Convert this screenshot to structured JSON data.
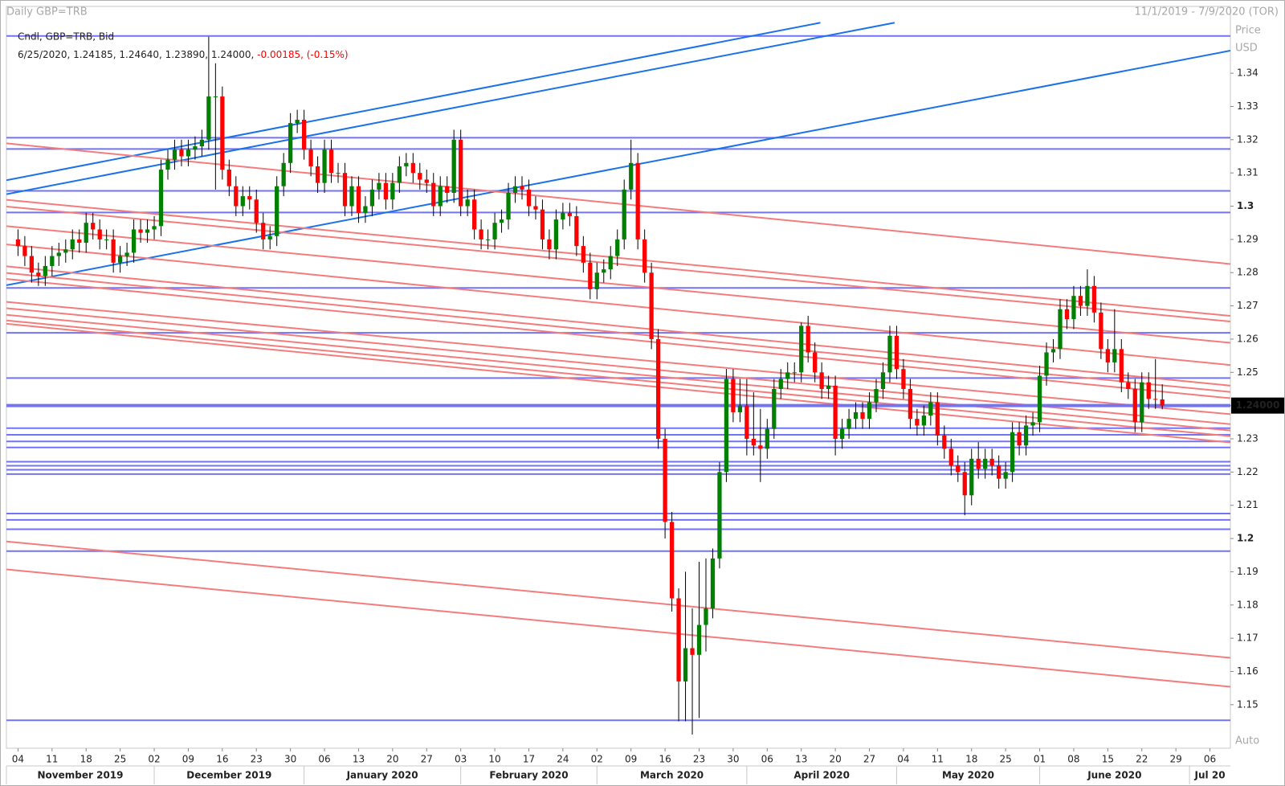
{
  "chart_data": {
    "type": "candlestick",
    "title": "Daily GBP=TRB",
    "range_text": "11/1/2019 - 7/9/2020 (TOR)",
    "legend": {
      "line1": "Cndl, GBP=TRB, Bid",
      "ohlc": "6/25/2020, 1.24185, 1.24640, 1.23890, 1.24000, ",
      "change": "-0.00185, (-0.15%)"
    },
    "axis_title": "Price",
    "axis_unit": "USD",
    "scale_mode": "Auto",
    "up_color": "#008000",
    "down_color": "#ff0000",
    "open": [
      1.29,
      1.288,
      1.285,
      1.28,
      1.279,
      1.282,
      1.285,
      1.286,
      1.287,
      1.29,
      1.289,
      1.295,
      1.293,
      1.29,
      1.29,
      1.283,
      1.285,
      1.286,
      1.293,
      1.292,
      1.293,
      1.294,
      1.311,
      1.314,
      1.317,
      1.315,
      1.317,
      1.318,
      1.32,
      1.333,
      1.333,
      1.311,
      1.306,
      1.3,
      1.303,
      1.302,
      1.295,
      1.29,
      1.291,
      1.306,
      1.313,
      1.325,
      1.326,
      1.317,
      1.312,
      1.307,
      1.317,
      1.31,
      1.31,
      1.3,
      1.306,
      1.298,
      1.3,
      1.305,
      1.307,
      1.302,
      1.307,
      1.312,
      1.313,
      1.31,
      1.308,
      1.307,
      1.3,
      1.306,
      1.304,
      1.32,
      1.3,
      1.302,
      1.293,
      1.29,
      1.29,
      1.295,
      1.296,
      1.304,
      1.306,
      1.305,
      1.3,
      1.299,
      1.29,
      1.287,
      1.296,
      1.298,
      1.297,
      1.288,
      1.283,
      1.275,
      1.28,
      1.281,
      1.285,
      1.29,
      1.305,
      1.313,
      1.29,
      1.28,
      1.26,
      1.23,
      1.205,
      1.182,
      1.157,
      1.167,
      1.165,
      1.174,
      1.179,
      1.194,
      1.22,
      1.248,
      1.238,
      1.24,
      1.23,
      1.228,
      1.227,
      1.233,
      1.245,
      1.248,
      1.25,
      1.25,
      1.264,
      1.256,
      1.25,
      1.245,
      1.246,
      1.23,
      1.233,
      1.236,
      1.238,
      1.236,
      1.241,
      1.245,
      1.25,
      1.261,
      1.251,
      1.245,
      1.236,
      1.234,
      1.237,
      1.241,
      1.231,
      1.227,
      1.222,
      1.22,
      1.213,
      1.224,
      1.221,
      1.224,
      1.222,
      1.218,
      1.22,
      1.232,
      1.228,
      1.234,
      1.235,
      1.249,
      1.256,
      1.257,
      1.269,
      1.266,
      1.273,
      1.27,
      1.276,
      1.268,
      1.257,
      1.253,
      1.257,
      1.247,
      1.245,
      1.235,
      1.247,
      1.242,
      1.24185
    ],
    "high": [
      1.293,
      1.291,
      1.288,
      1.283,
      1.285,
      1.288,
      1.289,
      1.29,
      1.293,
      1.293,
      1.298,
      1.298,
      1.296,
      1.293,
      1.293,
      1.288,
      1.289,
      1.296,
      1.296,
      1.296,
      1.297,
      1.314,
      1.317,
      1.32,
      1.32,
      1.32,
      1.321,
      1.323,
      1.351,
      1.343,
      1.336,
      1.314,
      1.309,
      1.306,
      1.306,
      1.305,
      1.298,
      1.294,
      1.309,
      1.316,
      1.328,
      1.329,
      1.329,
      1.32,
      1.315,
      1.32,
      1.32,
      1.313,
      1.313,
      1.309,
      1.309,
      1.303,
      1.308,
      1.31,
      1.31,
      1.31,
      1.315,
      1.316,
      1.316,
      1.313,
      1.311,
      1.31,
      1.309,
      1.309,
      1.323,
      1.323,
      1.305,
      1.305,
      1.296,
      1.293,
      1.298,
      1.299,
      1.307,
      1.309,
      1.309,
      1.308,
      1.303,
      1.302,
      1.293,
      1.299,
      1.301,
      1.301,
      1.3,
      1.291,
      1.286,
      1.283,
      1.284,
      1.288,
      1.293,
      1.308,
      1.32,
      1.316,
      1.293,
      1.283,
      1.263,
      1.233,
      1.208,
      1.185,
      1.19,
      1.179,
      1.193,
      1.194,
      1.197,
      1.223,
      1.251,
      1.251,
      1.248,
      1.248,
      1.244,
      1.239,
      1.236,
      1.248,
      1.251,
      1.253,
      1.253,
      1.265,
      1.267,
      1.259,
      1.253,
      1.249,
      1.249,
      1.236,
      1.239,
      1.241,
      1.241,
      1.244,
      1.248,
      1.253,
      1.264,
      1.264,
      1.254,
      1.248,
      1.239,
      1.24,
      1.244,
      1.244,
      1.234,
      1.23,
      1.225,
      1.223,
      1.227,
      1.229,
      1.227,
      1.227,
      1.225,
      1.223,
      1.235,
      1.235,
      1.237,
      1.238,
      1.252,
      1.259,
      1.26,
      1.272,
      1.272,
      1.276,
      1.276,
      1.281,
      1.279,
      1.271,
      1.26,
      1.269,
      1.26,
      1.25,
      1.248,
      1.25,
      1.25,
      1.254,
      1.2464
    ],
    "low": [
      1.285,
      1.282,
      1.277,
      1.276,
      1.276,
      1.279,
      1.282,
      1.283,
      1.284,
      1.286,
      1.286,
      1.29,
      1.287,
      1.287,
      1.28,
      1.28,
      1.282,
      1.283,
      1.289,
      1.289,
      1.29,
      1.291,
      1.308,
      1.311,
      1.312,
      1.312,
      1.314,
      1.315,
      1.317,
      1.305,
      1.308,
      1.303,
      1.297,
      1.297,
      1.299,
      1.292,
      1.287,
      1.287,
      1.288,
      1.303,
      1.31,
      1.322,
      1.314,
      1.309,
      1.304,
      1.304,
      1.307,
      1.307,
      1.297,
      1.297,
      1.295,
      1.295,
      1.297,
      1.302,
      1.299,
      1.299,
      1.304,
      1.309,
      1.307,
      1.305,
      1.304,
      1.297,
      1.297,
      1.301,
      1.301,
      1.297,
      1.297,
      1.29,
      1.287,
      1.287,
      1.287,
      1.292,
      1.293,
      1.301,
      1.302,
      1.297,
      1.296,
      1.287,
      1.284,
      1.284,
      1.293,
      1.294,
      1.285,
      1.28,
      1.272,
      1.272,
      1.277,
      1.278,
      1.282,
      1.287,
      1.302,
      1.287,
      1.277,
      1.257,
      1.227,
      1.2,
      1.178,
      1.145,
      1.145,
      1.141,
      1.146,
      1.166,
      1.176,
      1.191,
      1.217,
      1.235,
      1.235,
      1.225,
      1.225,
      1.217,
      1.224,
      1.23,
      1.242,
      1.245,
      1.247,
      1.247,
      1.253,
      1.247,
      1.242,
      1.242,
      1.225,
      1.227,
      1.23,
      1.233,
      1.233,
      1.233,
      1.238,
      1.242,
      1.247,
      1.248,
      1.242,
      1.233,
      1.231,
      1.231,
      1.234,
      1.228,
      1.224,
      1.219,
      1.217,
      1.207,
      1.21,
      1.218,
      1.218,
      1.219,
      1.215,
      1.215,
      1.217,
      1.225,
      1.225,
      1.231,
      1.232,
      1.246,
      1.253,
      1.254,
      1.263,
      1.263,
      1.267,
      1.267,
      1.265,
      1.254,
      1.25,
      1.25,
      1.244,
      1.242,
      1.232,
      1.232,
      1.239,
      1.239,
      1.2389
    ],
    "close": [
      1.288,
      1.285,
      1.28,
      1.279,
      1.282,
      1.285,
      1.286,
      1.287,
      1.29,
      1.289,
      1.295,
      1.293,
      1.29,
      1.29,
      1.283,
      1.285,
      1.286,
      1.293,
      1.292,
      1.293,
      1.294,
      1.311,
      1.314,
      1.317,
      1.315,
      1.317,
      1.318,
      1.32,
      1.333,
      1.333,
      1.311,
      1.306,
      1.3,
      1.303,
      1.302,
      1.295,
      1.29,
      1.291,
      1.306,
      1.313,
      1.325,
      1.326,
      1.317,
      1.312,
      1.307,
      1.317,
      1.31,
      1.31,
      1.3,
      1.306,
      1.298,
      1.3,
      1.305,
      1.307,
      1.302,
      1.307,
      1.312,
      1.313,
      1.31,
      1.308,
      1.307,
      1.3,
      1.306,
      1.304,
      1.32,
      1.3,
      1.302,
      1.293,
      1.29,
      1.29,
      1.295,
      1.296,
      1.304,
      1.306,
      1.305,
      1.3,
      1.299,
      1.29,
      1.287,
      1.296,
      1.298,
      1.297,
      1.288,
      1.283,
      1.275,
      1.28,
      1.281,
      1.285,
      1.29,
      1.305,
      1.313,
      1.29,
      1.28,
      1.26,
      1.23,
      1.205,
      1.182,
      1.157,
      1.167,
      1.165,
      1.174,
      1.179,
      1.194,
      1.22,
      1.248,
      1.238,
      1.24,
      1.23,
      1.228,
      1.227,
      1.233,
      1.245,
      1.248,
      1.25,
      1.25,
      1.264,
      1.256,
      1.25,
      1.245,
      1.246,
      1.23,
      1.233,
      1.236,
      1.238,
      1.236,
      1.241,
      1.245,
      1.25,
      1.261,
      1.251,
      1.245,
      1.236,
      1.234,
      1.237,
      1.241,
      1.231,
      1.227,
      1.222,
      1.22,
      1.213,
      1.224,
      1.221,
      1.224,
      1.222,
      1.218,
      1.22,
      1.232,
      1.228,
      1.234,
      1.235,
      1.249,
      1.256,
      1.257,
      1.269,
      1.266,
      1.273,
      1.27,
      1.276,
      1.268,
      1.257,
      1.253,
      1.257,
      1.247,
      1.245,
      1.235,
      1.247,
      1.242,
      1.24185,
      1.24
    ],
    "xlim": [
      -1.7,
      178
    ],
    "xticks": [
      {
        "value": 0,
        "label": "04"
      },
      {
        "value": 5,
        "label": "11"
      },
      {
        "value": 10,
        "label": "18"
      },
      {
        "value": 15,
        "label": "25"
      },
      {
        "value": 20,
        "label": "02"
      },
      {
        "value": 25,
        "label": "09"
      },
      {
        "value": 30,
        "label": "16"
      },
      {
        "value": 35,
        "label": "23"
      },
      {
        "value": 40,
        "label": "30"
      },
      {
        "value": 45,
        "label": "06"
      },
      {
        "value": 50,
        "label": "13"
      },
      {
        "value": 55,
        "label": "20"
      },
      {
        "value": 60,
        "label": "27"
      },
      {
        "value": 65,
        "label": "03"
      },
      {
        "value": 70,
        "label": "10"
      },
      {
        "value": 75,
        "label": "17"
      },
      {
        "value": 80,
        "label": "24"
      },
      {
        "value": 85,
        "label": "02"
      },
      {
        "value": 90,
        "label": "09"
      },
      {
        "value": 95,
        "label": "16"
      },
      {
        "value": 100,
        "label": "23"
      },
      {
        "value": 105,
        "label": "30"
      },
      {
        "value": 110,
        "label": "06"
      },
      {
        "value": 115,
        "label": "13"
      },
      {
        "value": 120,
        "label": "20"
      },
      {
        "value": 125,
        "label": "27"
      },
      {
        "value": 130,
        "label": "04"
      },
      {
        "value": 135,
        "label": "11"
      },
      {
        "value": 140,
        "label": "18"
      },
      {
        "value": 145,
        "label": "25"
      },
      {
        "value": 150,
        "label": "01"
      },
      {
        "value": 155,
        "label": "08"
      },
      {
        "value": 160,
        "label": "15"
      },
      {
        "value": 165,
        "label": "22"
      },
      {
        "value": 170,
        "label": "29"
      },
      {
        "value": 175,
        "label": "06"
      }
    ],
    "months": [
      {
        "value": -1.7,
        "label": "November 2019"
      },
      {
        "value": 20,
        "label": "December 2019"
      },
      {
        "value": 42,
        "label": "January 2020"
      },
      {
        "value": 65,
        "label": "February 2020"
      },
      {
        "value": 85,
        "label": "March 2020"
      },
      {
        "value": 107,
        "label": "April 2020"
      },
      {
        "value": 129,
        "label": "May 2020"
      },
      {
        "value": 150,
        "label": "June 2020"
      },
      {
        "value": 172,
        "label": "Jul 20"
      }
    ],
    "ylim": [
      1.1369,
      1.3601
    ],
    "yticks": [
      1.34,
      1.33,
      1.32,
      1.31,
      1.3,
      1.29,
      1.28,
      1.27,
      1.26,
      1.25,
      1.24,
      1.23,
      1.22,
      1.21,
      1.2,
      1.19,
      1.18,
      1.17,
      1.16,
      1.15
    ],
    "grid": false,
    "last_price": {
      "value": 1.24,
      "label": "1.24000"
    },
    "hline_color": "#7373f5",
    "hlines": [
      1.3512,
      1.3206,
      1.3172,
      1.3046,
      1.2981,
      1.2754,
      1.2619,
      1.2483,
      1.2332,
      1.2312,
      1.2292,
      1.2274,
      1.2231,
      1.2219,
      1.2207,
      1.2194,
      1.2075,
      1.2056,
      1.2028,
      1.1962,
      1.1453
    ],
    "trendlines": [
      {
        "color": "#1b72e8",
        "x": [
          -1.7,
          117.8
        ],
        "y": [
          1.3078,
          1.3552
        ]
      },
      {
        "color": "#1b72e8",
        "x": [
          -1.7,
          128.7
        ],
        "y": [
          1.3036,
          1.3552
        ]
      },
      {
        "color": "#1b72e8",
        "x": [
          -1.7,
          178
        ],
        "y": [
          1.2762,
          1.3468
        ]
      },
      {
        "color": "#f47c7c",
        "x": [
          -1.7,
          178
        ],
        "y": [
          1.3189,
          1.2826
        ]
      },
      {
        "color": "#f47c7c",
        "x": [
          -1.7,
          178
        ],
        "y": [
          1.3019,
          1.267
        ]
      },
      {
        "color": "#f47c7c",
        "x": [
          -1.7,
          178
        ],
        "y": [
          1.2999,
          1.2653
        ]
      },
      {
        "color": "#f47c7c",
        "x": [
          -1.7,
          178
        ],
        "y": [
          1.294,
          1.2589
        ]
      },
      {
        "color": "#f47c7c",
        "x": [
          -1.7,
          178
        ],
        "y": [
          1.2885,
          1.2522
        ]
      },
      {
        "color": "#f47c7c",
        "x": [
          -1.7,
          178
        ],
        "y": [
          1.2819,
          1.246
        ]
      },
      {
        "color": "#f47c7c",
        "x": [
          -1.7,
          178
        ],
        "y": [
          1.2799,
          1.2441
        ]
      },
      {
        "color": "#f47c7c",
        "x": [
          -1.7,
          178
        ],
        "y": [
          1.2781,
          1.2422
        ]
      },
      {
        "color": "#f47c7c",
        "x": [
          -1.7,
          178
        ],
        "y": [
          1.2712,
          1.2374
        ]
      },
      {
        "color": "#f47c7c",
        "x": [
          -1.7,
          178
        ],
        "y": [
          1.2693,
          1.2344
        ]
      },
      {
        "color": "#f47c7c",
        "x": [
          -1.7,
          178
        ],
        "y": [
          1.2673,
          1.2325
        ]
      },
      {
        "color": "#f47c7c",
        "x": [
          -1.7,
          178
        ],
        "y": [
          1.2656,
          1.2308
        ]
      },
      {
        "color": "#f47c7c",
        "x": [
          -1.7,
          178
        ],
        "y": [
          1.2646,
          1.2289
        ]
      },
      {
        "color": "#f47c7c",
        "x": [
          -1.7,
          178
        ],
        "y": [
          1.1991,
          1.1641
        ]
      },
      {
        "color": "#f47c7c",
        "x": [
          -1.7,
          178
        ],
        "y": [
          1.1907,
          1.1554
        ]
      }
    ]
  }
}
